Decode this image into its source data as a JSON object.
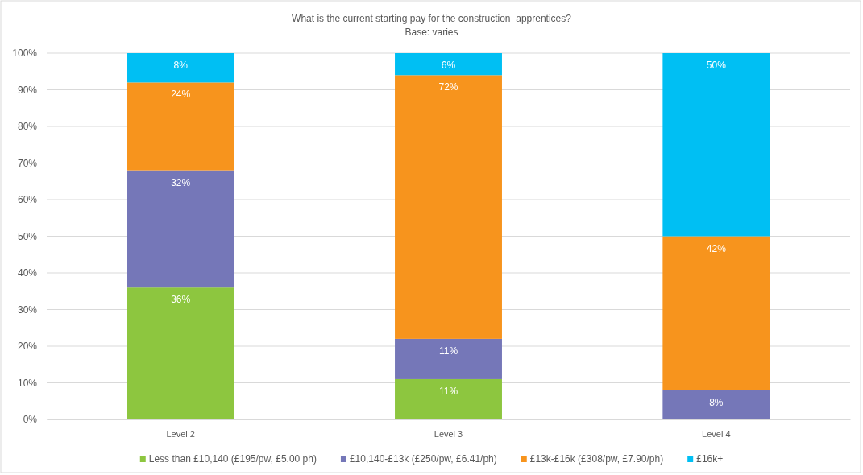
{
  "chart_data": {
    "type": "bar",
    "title": "What is the current starting pay for the construction  apprentices?",
    "subtitle": "Base: varies",
    "categories": [
      "Level 2",
      "Level 3",
      "Level 4"
    ],
    "series": [
      {
        "name": "Less than £10,140 (£195/pw, £5.00 ph)",
        "color": "#8dc63f",
        "values": [
          36,
          11,
          null
        ],
        "value_labels": [
          "36%",
          "11%",
          null
        ]
      },
      {
        "name": "£10,140-£13k (£250/pw, £6.41/ph)",
        "color": "#7577b8",
        "values": [
          32,
          11,
          8
        ],
        "value_labels": [
          "32%",
          "11%",
          "8%"
        ]
      },
      {
        "name": "£13k-£16k (£308/pw, £7.90/ph)",
        "color": "#f7941d",
        "values": [
          24,
          72,
          42
        ],
        "value_labels": [
          "24%",
          "72%",
          "42%"
        ]
      },
      {
        "name": "£16k+",
        "color": "#00bff3",
        "values": [
          8,
          6,
          50
        ],
        "value_labels": [
          "8%",
          "6%",
          "50%"
        ]
      }
    ],
    "stacked": true,
    "ylim": [
      0,
      100
    ],
    "yticks": [
      {
        "value": 0,
        "label": "0%"
      },
      {
        "value": 10,
        "label": "10%"
      },
      {
        "value": 20,
        "label": "20%"
      },
      {
        "value": 30,
        "label": "30%"
      },
      {
        "value": 40,
        "label": "40%"
      },
      {
        "value": 50,
        "label": "50%"
      },
      {
        "value": 60,
        "label": "60%"
      },
      {
        "value": 70,
        "label": "70%"
      },
      {
        "value": 80,
        "label": "80%"
      },
      {
        "value": 90,
        "label": "90%"
      },
      {
        "value": 100,
        "label": "100%"
      }
    ],
    "grid": "y",
    "legend": "bottom"
  }
}
